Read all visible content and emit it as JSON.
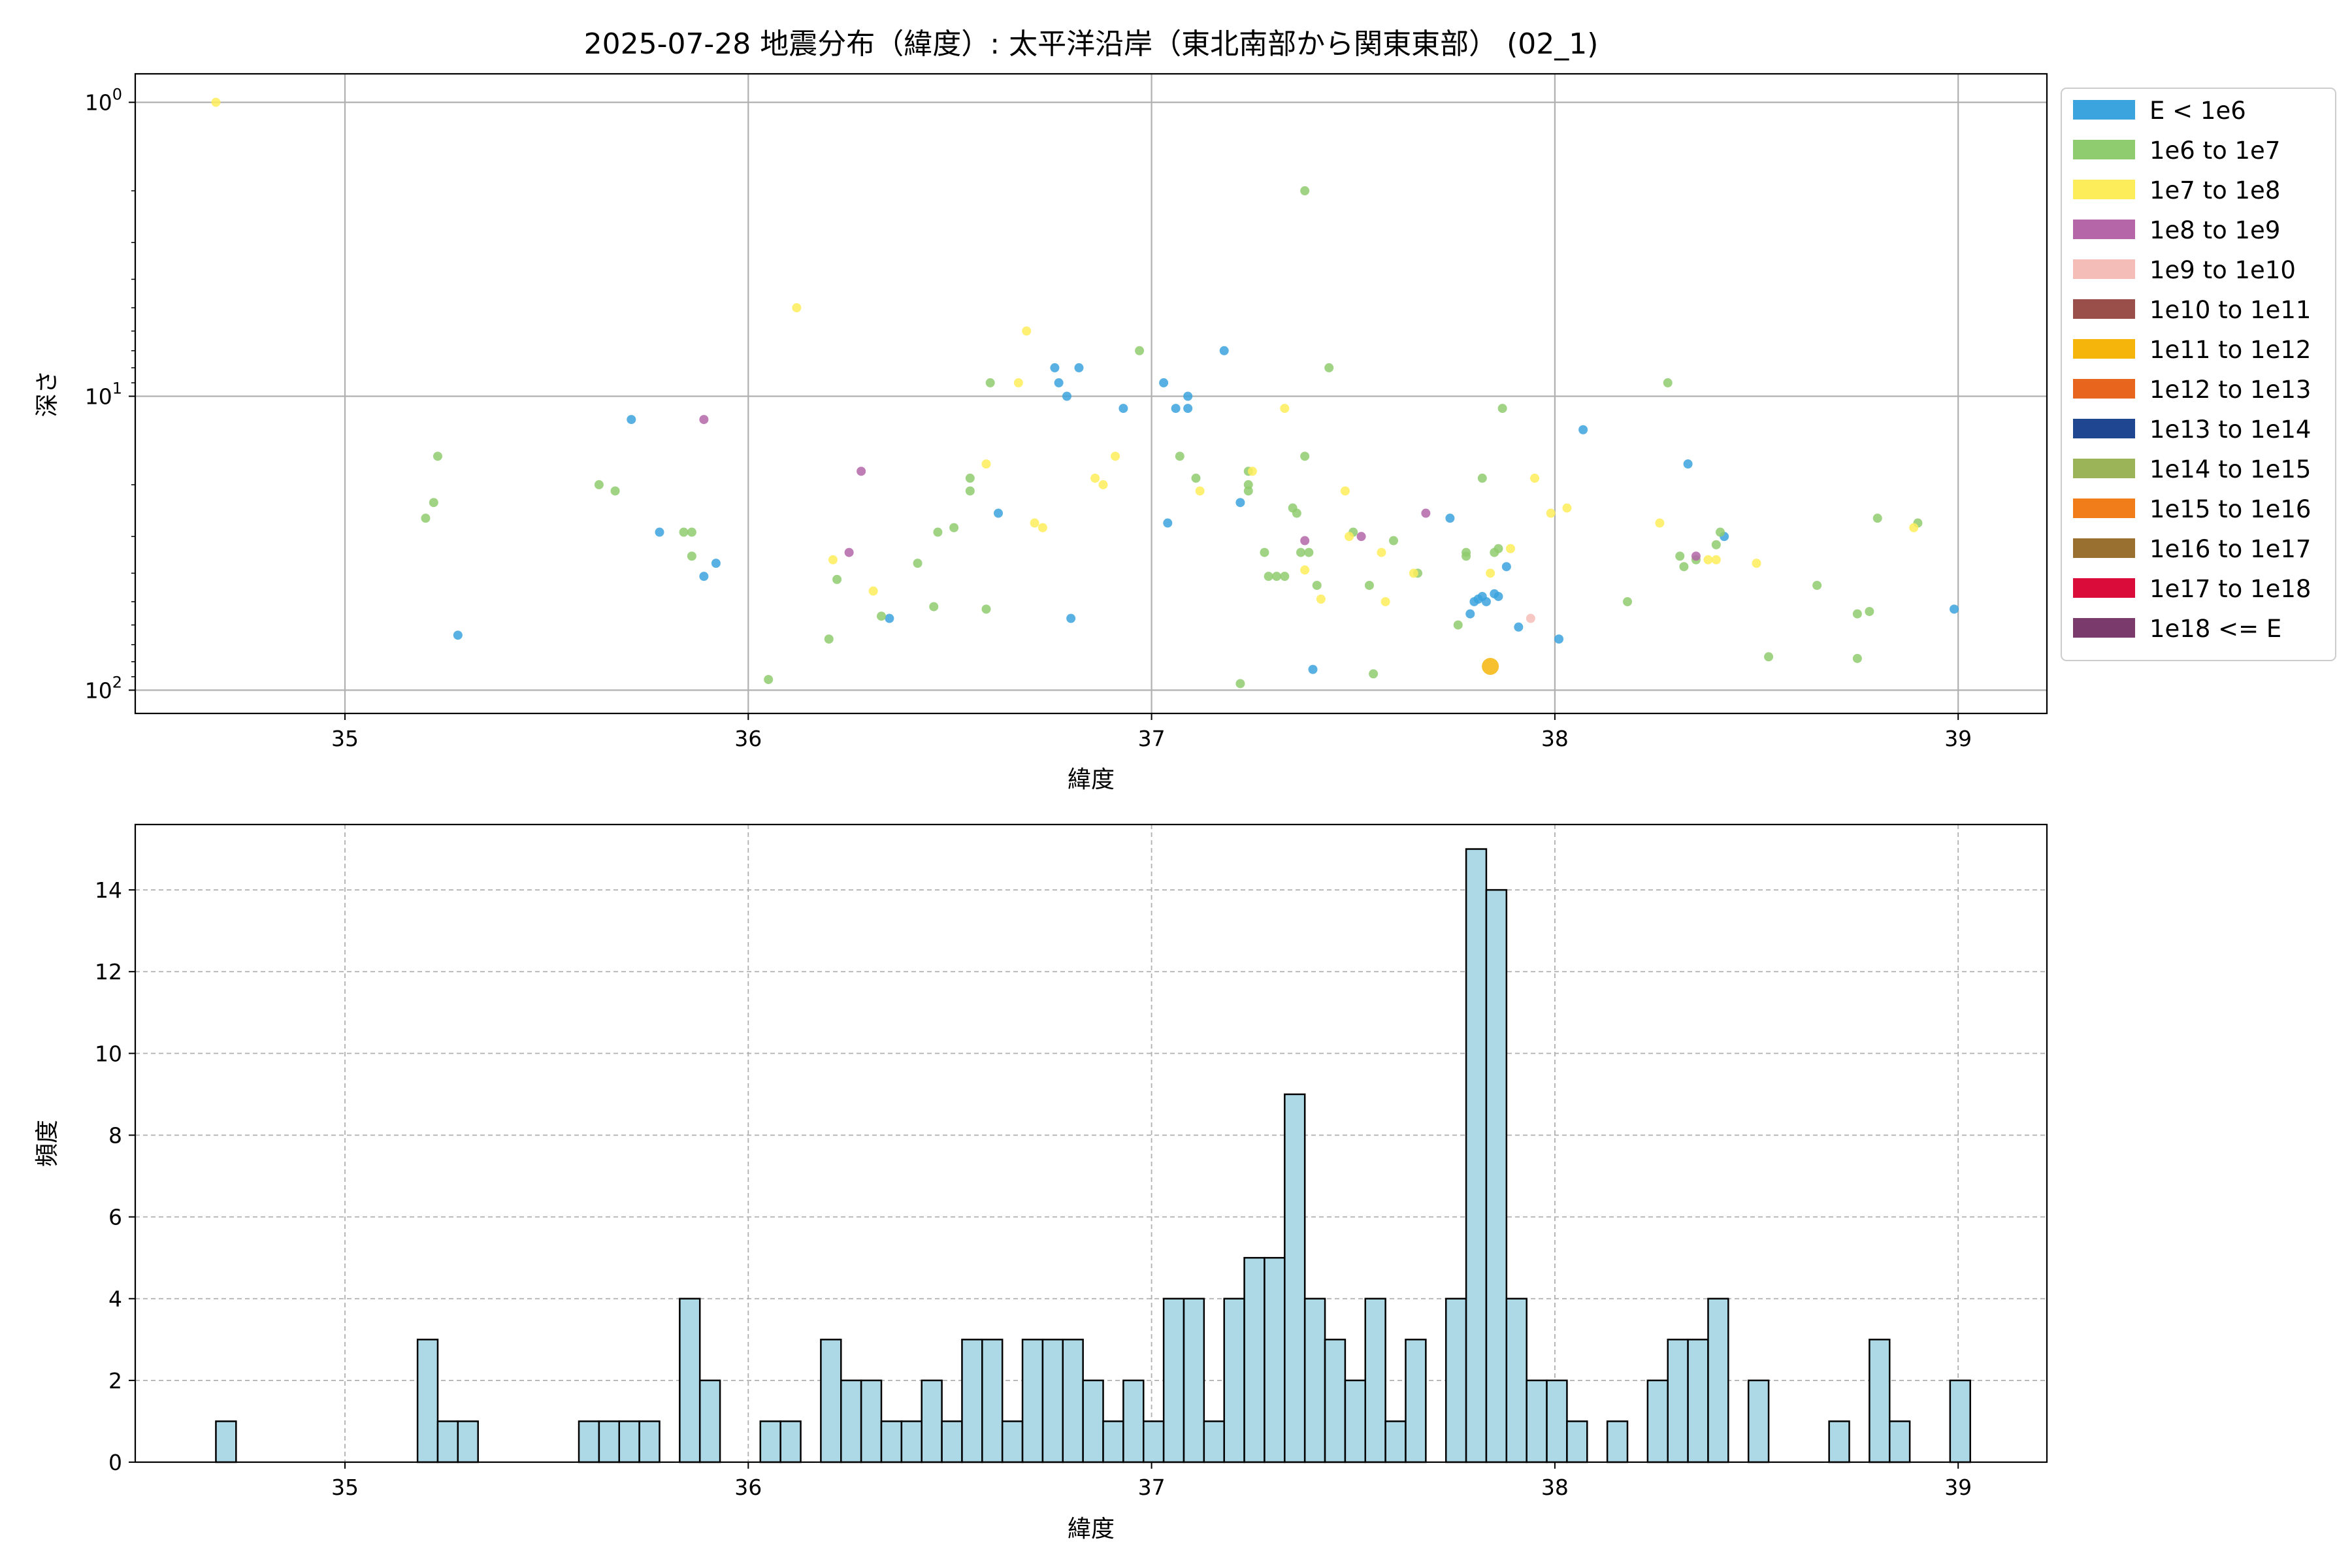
{
  "chart_data": [
    {
      "type": "scatter",
      "title": "2025-07-28 地震分布（緯度）: 太平洋沿岸（東北南部から関東東部） (02_1)",
      "xlabel": "緯度",
      "ylabel": "深さ",
      "xlim": [
        34.48,
        39.22
      ],
      "ylim": [
        120,
        0.8
      ],
      "y_scale": "log-inverted",
      "x_ticks": [
        "35",
        "36",
        "37",
        "38",
        "39"
      ],
      "x_tick_values": [
        35,
        36,
        37,
        38,
        39
      ],
      "y_ticks": [
        {
          "base": "10",
          "exp": "0",
          "value": 1
        },
        {
          "base": "10",
          "exp": "1",
          "value": 10
        },
        {
          "base": "10",
          "exp": "2",
          "value": 100
        }
      ],
      "grid": true,
      "legend_position": "outside-right",
      "legend": [
        {
          "label": "E < 1e6",
          "color": "#3ba3dd"
        },
        {
          "label": "1e6 to 1e7",
          "color": "#8fcb6f"
        },
        {
          "label": "1e7 to 1e8",
          "color": "#fded5a"
        },
        {
          "label": "1e8 to 1e9",
          "color": "#b466a8"
        },
        {
          "label": "1e9 to 1e10",
          "color": "#f4bdb8"
        },
        {
          "label": "1e10 to 1e11",
          "color": "#9a4f4a"
        },
        {
          "label": "1e11 to 1e12",
          "color": "#f5b50a"
        },
        {
          "label": "1e12 to 1e13",
          "color": "#e8651d"
        },
        {
          "label": "1e13 to 1e14",
          "color": "#1f4791"
        },
        {
          "label": "1e14 to 1e15",
          "color": "#9bb458"
        },
        {
          "label": "1e15 to 1e16",
          "color": "#f07d1a"
        },
        {
          "label": "1e16 to 1e17",
          "color": "#9a7030"
        },
        {
          "label": "1e17 to 1e18",
          "color": "#d90c3a"
        },
        {
          "label": "1e18 <= E",
          "color": "#7a3a6c"
        }
      ],
      "series": [
        {
          "name": "E < 1e6",
          "color": "#3ba3dd",
          "points": [
            [
              35.28,
              65
            ],
            [
              35.71,
              12
            ],
            [
              35.78,
              29
            ],
            [
              35.89,
              41
            ],
            [
              35.92,
              37
            ],
            [
              36.35,
              57
            ],
            [
              36.62,
              25
            ],
            [
              36.76,
              8
            ],
            [
              36.77,
              9
            ],
            [
              36.79,
              10
            ],
            [
              36.8,
              57
            ],
            [
              36.82,
              8
            ],
            [
              36.93,
              11
            ],
            [
              37.03,
              9
            ],
            [
              37.04,
              27
            ],
            [
              37.06,
              11
            ],
            [
              37.09,
              11
            ],
            [
              37.09,
              10
            ],
            [
              37.18,
              7
            ],
            [
              37.22,
              23
            ],
            [
              37.4,
              85
            ],
            [
              37.74,
              26
            ],
            [
              37.79,
              55
            ],
            [
              37.8,
              50
            ],
            [
              37.81,
              49
            ],
            [
              37.82,
              48
            ],
            [
              37.83,
              50
            ],
            [
              37.85,
              47
            ],
            [
              37.86,
              48
            ],
            [
              37.88,
              38
            ],
            [
              37.91,
              61
            ],
            [
              38.01,
              67
            ],
            [
              38.07,
              13
            ],
            [
              38.33,
              17
            ],
            [
              38.42,
              30
            ],
            [
              38.99,
              53
            ]
          ]
        },
        {
          "name": "1e6 to 1e7",
          "color": "#8fcb6f",
          "points": [
            [
              35.2,
              26
            ],
            [
              35.22,
              23
            ],
            [
              35.23,
              16
            ],
            [
              35.63,
              20
            ],
            [
              35.67,
              21
            ],
            [
              35.84,
              29
            ],
            [
              35.86,
              29
            ],
            [
              35.86,
              35
            ],
            [
              36.05,
              92
            ],
            [
              36.2,
              67
            ],
            [
              36.22,
              42
            ],
            [
              36.33,
              56
            ],
            [
              36.42,
              37
            ],
            [
              36.46,
              52
            ],
            [
              36.47,
              29
            ],
            [
              36.51,
              28
            ],
            [
              36.55,
              21
            ],
            [
              36.55,
              19
            ],
            [
              36.59,
              53
            ],
            [
              36.6,
              9
            ],
            [
              36.97,
              7
            ],
            [
              37.07,
              16
            ],
            [
              37.11,
              19
            ],
            [
              37.22,
              95
            ],
            [
              37.24,
              18
            ],
            [
              37.24,
              20
            ],
            [
              37.24,
              21
            ],
            [
              37.28,
              34
            ],
            [
              37.29,
              41
            ],
            [
              37.31,
              41
            ],
            [
              37.33,
              41
            ],
            [
              37.35,
              24
            ],
            [
              37.36,
              25
            ],
            [
              37.37,
              34
            ],
            [
              37.38,
              16
            ],
            [
              37.38,
              2
            ],
            [
              37.39,
              34
            ],
            [
              37.41,
              44
            ],
            [
              37.44,
              8
            ],
            [
              37.5,
              29
            ],
            [
              37.54,
              44
            ],
            [
              37.55,
              88
            ],
            [
              37.6,
              31
            ],
            [
              37.66,
              40
            ],
            [
              37.76,
              60
            ],
            [
              37.78,
              34
            ],
            [
              37.78,
              35
            ],
            [
              37.82,
              19
            ],
            [
              37.85,
              34
            ],
            [
              37.86,
              33
            ],
            [
              37.87,
              11
            ],
            [
              38.18,
              50
            ],
            [
              38.28,
              9
            ],
            [
              38.31,
              35
            ],
            [
              38.32,
              38
            ],
            [
              38.35,
              36
            ],
            [
              38.4,
              32
            ],
            [
              38.41,
              29
            ],
            [
              38.53,
              77
            ],
            [
              38.65,
              44
            ],
            [
              38.75,
              55
            ],
            [
              38.75,
              78
            ],
            [
              38.78,
              54
            ],
            [
              38.8,
              26
            ],
            [
              38.9,
              27
            ]
          ]
        },
        {
          "name": "1e7 to 1e8",
          "color": "#fded5a",
          "points": [
            [
              34.68,
              1
            ],
            [
              36.12,
              5
            ],
            [
              36.21,
              36
            ],
            [
              36.31,
              46
            ],
            [
              36.59,
              17
            ],
            [
              36.67,
              9
            ],
            [
              36.69,
              6
            ],
            [
              36.71,
              27
            ],
            [
              36.73,
              28
            ],
            [
              36.86,
              19
            ],
            [
              36.88,
              20
            ],
            [
              36.91,
              16
            ],
            [
              37.12,
              21
            ],
            [
              37.25,
              18
            ],
            [
              37.33,
              11
            ],
            [
              37.38,
              39
            ],
            [
              37.42,
              49
            ],
            [
              37.48,
              21
            ],
            [
              37.49,
              30
            ],
            [
              37.57,
              34
            ],
            [
              37.58,
              50
            ],
            [
              37.65,
              40
            ],
            [
              37.84,
              40
            ],
            [
              37.89,
              33
            ],
            [
              37.95,
              19
            ],
            [
              37.99,
              25
            ],
            [
              38.03,
              24
            ],
            [
              38.26,
              27
            ],
            [
              38.38,
              36
            ],
            [
              38.4,
              36
            ],
            [
              38.5,
              37
            ],
            [
              38.89,
              28
            ]
          ]
        },
        {
          "name": "1e8 to 1e9",
          "color": "#b466a8",
          "points": [
            [
              35.89,
              12
            ],
            [
              36.25,
              34
            ],
            [
              36.28,
              18
            ],
            [
              37.38,
              31
            ],
            [
              37.52,
              30
            ],
            [
              37.68,
              25
            ],
            [
              38.35,
              35
            ]
          ]
        },
        {
          "name": "1e9 to 1e10",
          "color": "#f4bdb8",
          "points": [
            [
              37.94,
              57
            ]
          ]
        },
        {
          "name": "1e11 to 1e12",
          "color": "#f5b50a",
          "size": "large",
          "points": [
            [
              37.84,
              83
            ]
          ]
        }
      ]
    },
    {
      "type": "bar",
      "chart_kind": "histogram",
      "xlabel": "緯度",
      "ylabel": "頻度",
      "xlim": [
        34.48,
        39.22
      ],
      "ylim": [
        0,
        15.6
      ],
      "x_ticks": [
        "35",
        "36",
        "37",
        "38",
        "39"
      ],
      "x_tick_values": [
        35,
        36,
        37,
        38,
        39
      ],
      "y_ticks": [
        "0",
        "2",
        "4",
        "6",
        "8",
        "10",
        "12",
        "14"
      ],
      "y_tick_values": [
        0,
        2,
        4,
        6,
        8,
        10,
        12,
        14
      ],
      "grid": true,
      "bar_color": "#add8e6",
      "bin_start": 34.68,
      "bin_width": 0.05,
      "values": [
        1,
        0,
        0,
        0,
        0,
        0,
        0,
        0,
        0,
        0,
        3,
        1,
        1,
        0,
        0,
        0,
        0,
        0,
        1,
        1,
        1,
        1,
        0,
        4,
        2,
        0,
        0,
        1,
        1,
        0,
        3,
        2,
        2,
        1,
        1,
        2,
        1,
        3,
        3,
        1,
        3,
        3,
        3,
        2,
        1,
        2,
        1,
        4,
        4,
        1,
        4,
        5,
        5,
        9,
        4,
        3,
        2,
        4,
        1,
        3,
        0,
        4,
        15,
        14,
        4,
        2,
        2,
        1,
        0,
        1,
        0,
        2,
        3,
        3,
        4,
        0,
        2,
        0,
        0,
        0,
        1,
        0,
        3,
        1,
        0,
        0,
        2
      ]
    }
  ]
}
